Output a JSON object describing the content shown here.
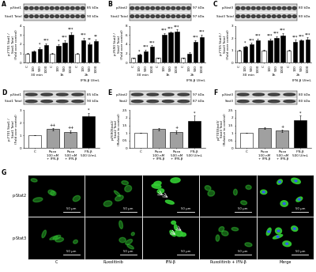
{
  "chart_data": [
    {
      "type": "bar",
      "panel": "A",
      "blot": {
        "bands": [
          "p-Stat1",
          "Stat1 Total"
        ],
        "sizes": [
          "85 kDa",
          "90 kDa"
        ]
      },
      "categories": [
        "C",
        "100",
        "500",
        "1000",
        "C",
        "100",
        "500",
        "1000",
        "C",
        "100",
        "500",
        "1000"
      ],
      "groups": [
        "30 min",
        "1h",
        "2h"
      ],
      "x_note": "IFN-β U/mL",
      "values": [
        1,
        1.2,
        1.5,
        1.9,
        1,
        1.8,
        2.2,
        3.0,
        1,
        2.4,
        2.0,
        2.3
      ],
      "errors": [
        0.05,
        0.1,
        0.15,
        0.2,
        0.05,
        0.2,
        0.25,
        0.3,
        0.05,
        0.3,
        0.2,
        0.25
      ],
      "significance": [
        null,
        null,
        "*",
        "***",
        null,
        "*",
        "***",
        "***",
        null,
        "***",
        "**",
        "**"
      ],
      "colors": [
        "#ffffff",
        "#000000",
        "#000000",
        "#000000",
        "#ffffff",
        "#000000",
        "#000000",
        "#000000",
        "#ffffff",
        "#000000",
        "#000000",
        "#000000"
      ],
      "y_label": "p-Y701 Stat1 /\nStat1 Total\n(Fold over control)",
      "ylim": [
        0,
        4
      ],
      "yticks": [
        0,
        1,
        2,
        3,
        4
      ]
    },
    {
      "type": "bar",
      "panel": "B",
      "blot": {
        "bands": [
          "p-Stat2",
          "Stat2 Total"
        ],
        "sizes": [
          "97 kDa",
          "97 kDa"
        ]
      },
      "categories": [
        "C",
        "100",
        "500",
        "1000",
        "C",
        "100",
        "500",
        "1000",
        "C",
        "100",
        "500",
        "1000"
      ],
      "groups": [
        "30 min",
        "1h",
        "2h"
      ],
      "x_note": "IFN-β U/mL",
      "values": [
        1,
        1.7,
        2.5,
        3.5,
        1,
        6.0,
        6.5,
        6.8,
        1,
        1.9,
        4.5,
        5.6
      ],
      "errors": [
        0.1,
        0.2,
        0.3,
        0.3,
        0.1,
        0.4,
        0.3,
        0.4,
        0.1,
        0.3,
        0.4,
        0.5
      ],
      "significance": [
        null,
        "*",
        "***",
        "***",
        null,
        "***",
        "***",
        "***",
        null,
        null,
        "***",
        "***"
      ],
      "colors": [
        "#ffffff",
        "#000000",
        "#000000",
        "#000000",
        "#ffffff",
        "#000000",
        "#000000",
        "#000000",
        "#ffffff",
        "#000000",
        "#000000",
        "#000000"
      ],
      "y_label": "p-Y690 Stat2 /\nStat2 Total\n(Fold over control)",
      "ylim": [
        0,
        8
      ],
      "yticks": [
        0,
        2,
        4,
        6,
        8
      ]
    },
    {
      "type": "bar",
      "panel": "C",
      "blot": {
        "bands": [
          "p-Stat3",
          "Stat3 Total"
        ],
        "sizes": [
          "80 kDa",
          "80 kDa"
        ]
      },
      "categories": [
        "C",
        "100",
        "500",
        "1000",
        "C",
        "100",
        "500",
        "1000",
        "C",
        "100",
        "500",
        "1000"
      ],
      "groups": [
        "30 min",
        "1h",
        "2h"
      ],
      "x_note": "IFN-β U/mL",
      "values": [
        1,
        1.3,
        1.5,
        1.8,
        1,
        1.8,
        2.0,
        2.2,
        1,
        1.7,
        1.8,
        1.9
      ],
      "errors": [
        0.05,
        0.08,
        0.1,
        0.15,
        0.05,
        0.15,
        0.15,
        0.2,
        0.05,
        0.15,
        0.1,
        0.15
      ],
      "significance": [
        null,
        "*",
        "***",
        "***",
        null,
        "***",
        "***",
        "***",
        null,
        "***",
        "***",
        "***"
      ],
      "colors": [
        "#ffffff",
        "#000000",
        "#000000",
        "#000000",
        "#ffffff",
        "#000000",
        "#000000",
        "#000000",
        "#ffffff",
        "#000000",
        "#000000",
        "#000000"
      ],
      "y_label": "p-Y705 Stat3 /\nStat3 Total\n(Fold over control)",
      "ylim": [
        0,
        3
      ],
      "yticks": [
        0,
        1,
        2,
        3
      ]
    },
    {
      "type": "bar",
      "panel": "D",
      "blot": {
        "bands": [
          "p-Stat1",
          "Stat1 Total"
        ],
        "sizes": [
          "85 kDa",
          "90 kDa"
        ]
      },
      "categories": [
        "C",
        "Ruxo\n100 nM\n+ IFN-β",
        "Ruxo\n500 nM\n+ IFN-β",
        "IFN-β\n500 U/mL"
      ],
      "values": [
        1,
        1.5,
        1.3,
        2.5
      ],
      "errors": [
        0,
        0.1,
        0.1,
        0.3
      ],
      "significance": [
        null,
        "++",
        "++",
        "*"
      ],
      "colors": [
        "#ffffff",
        "#a0a0a0",
        "#a0a0a0",
        "#000000"
      ],
      "y_label": "p-Y701 Stat1 /\nStat1 Total\n(Fold over control)",
      "ylim": [
        0,
        3
      ],
      "yticks": [
        0,
        1,
        2,
        3
      ]
    },
    {
      "type": "bar",
      "panel": "E",
      "blot": {
        "bands": [
          "p-Stat2",
          "Stat2"
        ],
        "sizes": [
          "97 kDa",
          "87 kDa"
        ]
      },
      "categories": [
        "C",
        "Ruxo\n100 nM\n+ IFN-β",
        "Ruxo\n500 nM\n+ IFN-β",
        "IFN-β\n500 U/mL"
      ],
      "values": [
        1,
        1.25,
        1.05,
        1.8
      ],
      "errors": [
        0,
        0.08,
        0.1,
        0.35
      ],
      "significance": [
        null,
        null,
        "+",
        "*"
      ],
      "colors": [
        "#ffffff",
        "#a0a0a0",
        "#a0a0a0",
        "#000000"
      ],
      "y_label": "p-Y690Stat2/\nStat2 Total\n(Relative to control)",
      "ylim": [
        0,
        2.5
      ],
      "yticks": [
        0,
        0.5,
        1,
        1.5,
        2,
        2.5
      ]
    },
    {
      "type": "bar",
      "panel": "F",
      "blot": {
        "bands": [
          "p-Stat3",
          "Stat3"
        ],
        "sizes": [
          "80 kDa",
          "80 kDa"
        ]
      },
      "categories": [
        "C",
        "Ruxo\n100 nM\n+ IFN-β",
        "Ruxo\n500 nM\n+ IFN-β",
        "IFN-β\n500 U/mL"
      ],
      "values": [
        1,
        1.3,
        1.15,
        1.85
      ],
      "errors": [
        0,
        0.05,
        0.07,
        0.3
      ],
      "significance": [
        null,
        null,
        "+",
        "*"
      ],
      "colors": [
        "#ffffff",
        "#a0a0a0",
        "#a0a0a0",
        "#000000"
      ],
      "y_label": "p-Y705Stat3/\nStat3 Total\n(Relative to control)",
      "ylim": [
        0,
        2.5
      ],
      "yticks": [
        0,
        0.5,
        1,
        1.5,
        2,
        2.5
      ]
    }
  ],
  "micrographs": {
    "panel": "G",
    "rows": [
      "p-Stat2",
      "p-Stat3"
    ],
    "columns": [
      "C",
      "Ruxolitinib",
      "IFN-β",
      "Ruxolitinib + IFN-β",
      "Merge"
    ],
    "scale_bar": "50 μm"
  }
}
